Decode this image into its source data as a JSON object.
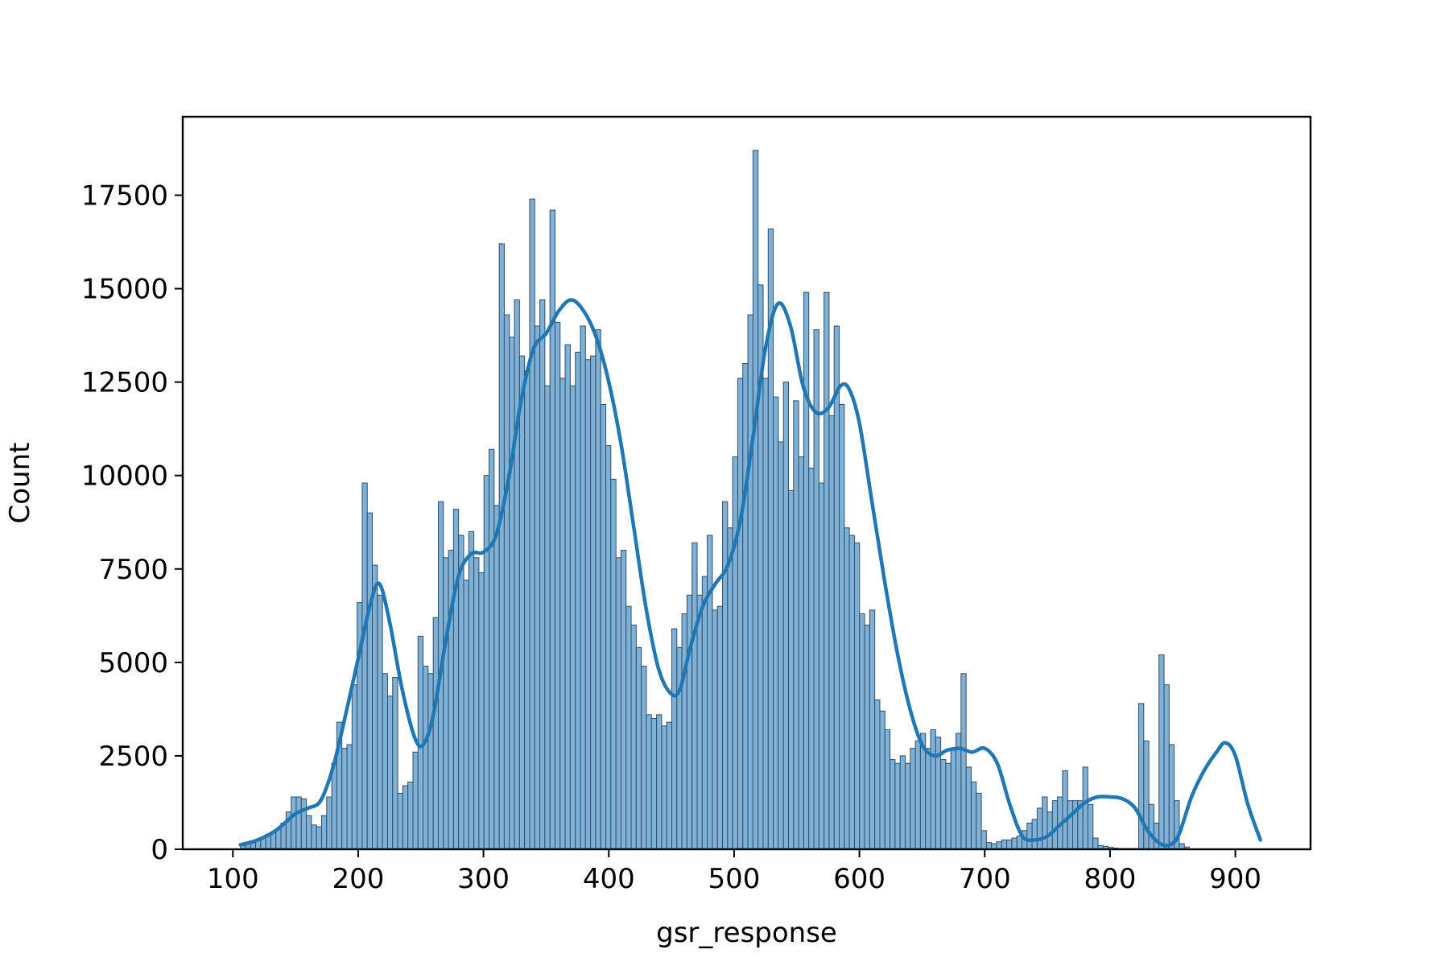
{
  "chart_data": {
    "type": "histogram",
    "xlabel": "gsr_response",
    "ylabel": "Count",
    "xlim": [
      60,
      960
    ],
    "ylim": [
      0,
      19600
    ],
    "xticks": [
      100,
      200,
      300,
      400,
      500,
      600,
      700,
      800,
      900
    ],
    "yticks": [
      0,
      2500,
      5000,
      7500,
      10000,
      12500,
      15000,
      17500
    ],
    "bin_start": 106,
    "bin_width": 4.05,
    "bar_color": "#7fb0d6",
    "bar_edge_color": "#2f4f6a",
    "kde_color": "#1f77b4",
    "counts": [
      100,
      150,
      200,
      250,
      300,
      400,
      450,
      550,
      700,
      1000,
      1400,
      1400,
      1350,
      900,
      650,
      600,
      900,
      1400,
      2300,
      3400,
      2700,
      2800,
      4400,
      6600,
      9800,
      9000,
      7600,
      6800,
      4700,
      4100,
      4600,
      1500,
      1700,
      1800,
      2600,
      5700,
      4900,
      4700,
      6200,
      9300,
      7800,
      8000,
      9100,
      8400,
      7200,
      8500,
      7800,
      7400,
      10000,
      10700,
      9200,
      16200,
      14300,
      13700,
      14700,
      13200,
      12800,
      17400,
      14000,
      14700,
      12400,
      17100,
      14100,
      12600,
      13500,
      12400,
      13300,
      14000,
      13100,
      13200,
      13900,
      11900,
      10800,
      9900,
      7800,
      8000,
      6500,
      6000,
      5400,
      4900,
      3600,
      3500,
      3600,
      3300,
      3400,
      5900,
      5400,
      6300,
      6800,
      8200,
      6800,
      7300,
      8400,
      6400,
      6500,
      9300,
      8600,
      10500,
      12600,
      13000,
      14300,
      18700,
      15100,
      12600,
      16600,
      12100,
      10900,
      12500,
      9600,
      12000,
      10500,
      14900,
      10200,
      13900,
      9800,
      14900,
      11600,
      14000,
      11900,
      8600,
      8400,
      8200,
      6300,
      6000,
      6400,
      4000,
      3700,
      3200,
      2400,
      2300,
      2500,
      2300,
      2700,
      2900,
      3100,
      2700,
      3200,
      3000,
      2400,
      2300,
      2700,
      3100,
      4700,
      2200,
      1800,
      1500,
      500,
      180,
      150,
      200,
      250,
      250,
      300,
      350,
      500,
      700,
      800,
      1100,
      1400,
      1000,
      1300,
      1400,
      2100,
      1300,
      1300,
      1300,
      2200,
      1200,
      300,
      100,
      80,
      50,
      30,
      20,
      20,
      20,
      20,
      3900,
      2900,
      1200,
      700,
      5200,
      4400,
      2800,
      1300,
      150,
      60
    ],
    "kde": [
      [
        106,
        120
      ],
      [
        120,
        250
      ],
      [
        135,
        520
      ],
      [
        150,
        950
      ],
      [
        160,
        1100
      ],
      [
        170,
        1300
      ],
      [
        180,
        2200
      ],
      [
        190,
        3600
      ],
      [
        200,
        5100
      ],
      [
        210,
        6600
      ],
      [
        217,
        7100
      ],
      [
        225,
        6100
      ],
      [
        235,
        4300
      ],
      [
        245,
        3000
      ],
      [
        252,
        2800
      ],
      [
        260,
        3600
      ],
      [
        270,
        5600
      ],
      [
        280,
        7300
      ],
      [
        290,
        7900
      ],
      [
        300,
        7950
      ],
      [
        310,
        8400
      ],
      [
        320,
        9900
      ],
      [
        330,
        12000
      ],
      [
        340,
        13400
      ],
      [
        350,
        13800
      ],
      [
        360,
        14400
      ],
      [
        370,
        14700
      ],
      [
        380,
        14400
      ],
      [
        390,
        13700
      ],
      [
        400,
        12500
      ],
      [
        410,
        10800
      ],
      [
        420,
        8600
      ],
      [
        430,
        6400
      ],
      [
        440,
        4800
      ],
      [
        450,
        4150
      ],
      [
        457,
        4300
      ],
      [
        465,
        5400
      ],
      [
        475,
        6500
      ],
      [
        485,
        7100
      ],
      [
        495,
        7600
      ],
      [
        505,
        8800
      ],
      [
        515,
        11000
      ],
      [
        525,
        13400
      ],
      [
        535,
        14600
      ],
      [
        545,
        14000
      ],
      [
        555,
        12400
      ],
      [
        565,
        11700
      ],
      [
        575,
        11800
      ],
      [
        585,
        12400
      ],
      [
        592,
        12300
      ],
      [
        600,
        11400
      ],
      [
        610,
        9300
      ],
      [
        620,
        7200
      ],
      [
        630,
        5300
      ],
      [
        640,
        3800
      ],
      [
        650,
        2800
      ],
      [
        660,
        2500
      ],
      [
        670,
        2650
      ],
      [
        680,
        2700
      ],
      [
        690,
        2600
      ],
      [
        700,
        2700
      ],
      [
        710,
        2300
      ],
      [
        720,
        1200
      ],
      [
        730,
        350
      ],
      [
        740,
        250
      ],
      [
        750,
        350
      ],
      [
        760,
        650
      ],
      [
        770,
        950
      ],
      [
        780,
        1250
      ],
      [
        790,
        1400
      ],
      [
        800,
        1400
      ],
      [
        810,
        1350
      ],
      [
        820,
        1100
      ],
      [
        830,
        500
      ],
      [
        840,
        150
      ],
      [
        848,
        120
      ],
      [
        855,
        400
      ],
      [
        865,
        1400
      ],
      [
        875,
        2100
      ],
      [
        885,
        2600
      ],
      [
        892,
        2850
      ],
      [
        900,
        2500
      ],
      [
        910,
        1200
      ],
      [
        920,
        250
      ]
    ]
  }
}
